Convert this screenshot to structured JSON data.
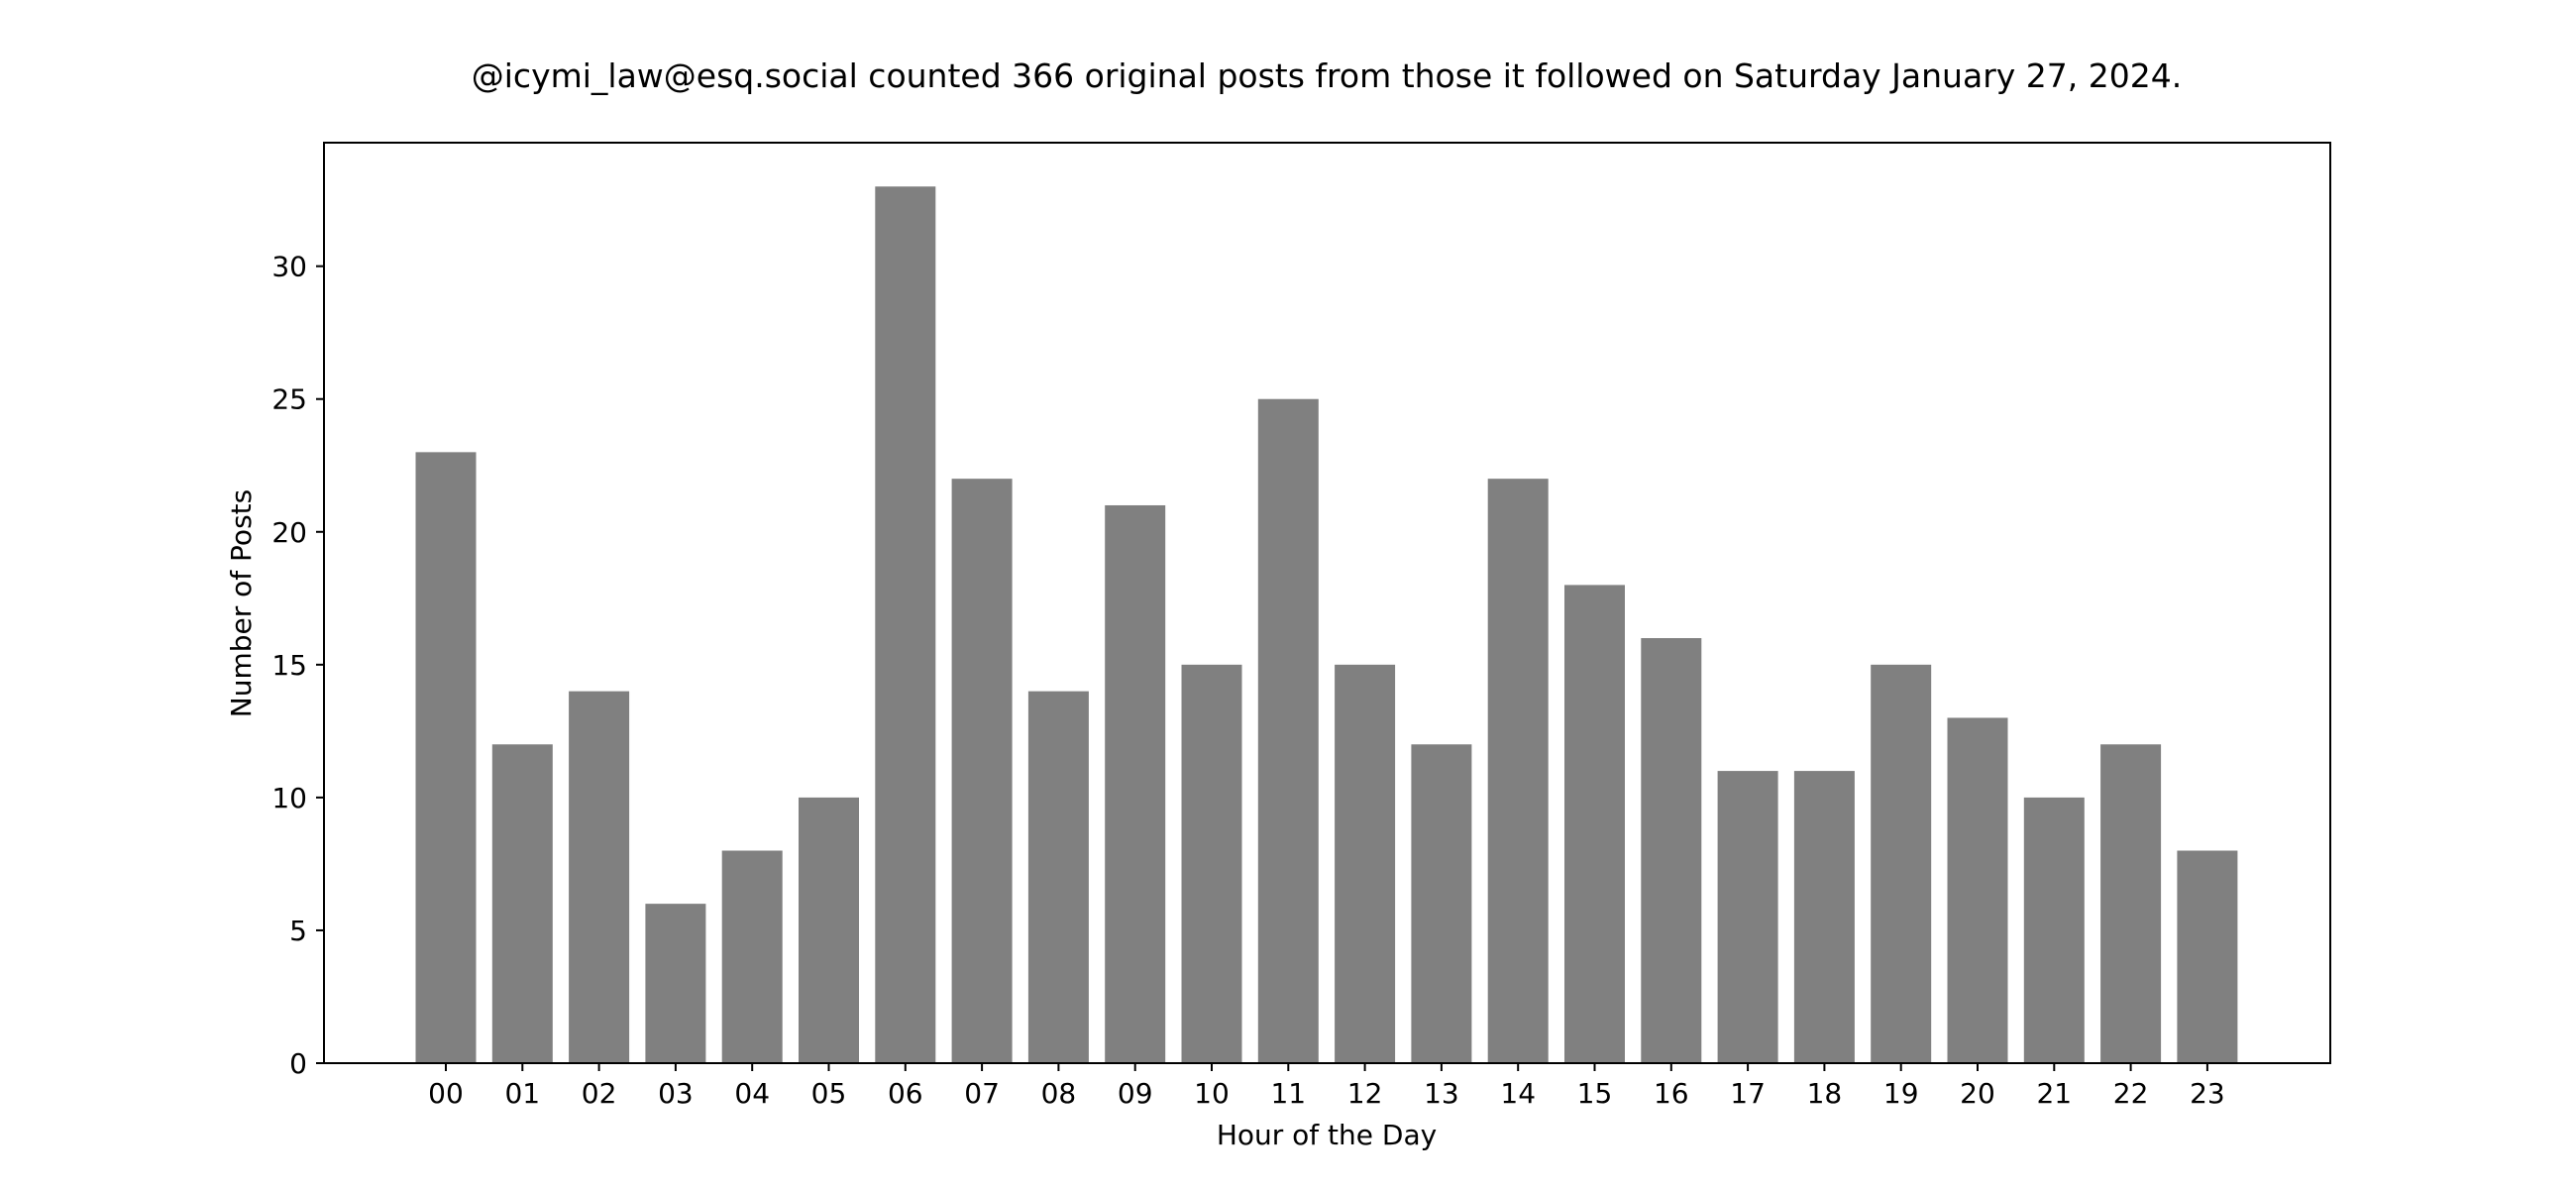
{
  "chart_data": {
    "type": "bar",
    "title": "@icymi_law@esq.social counted 366 original posts from those it followed on Saturday January 27, 2024.",
    "xlabel": "Hour of the Day",
    "ylabel": "Number of Posts",
    "categories": [
      "00",
      "01",
      "02",
      "03",
      "04",
      "05",
      "06",
      "07",
      "08",
      "09",
      "10",
      "11",
      "12",
      "13",
      "14",
      "15",
      "16",
      "17",
      "18",
      "19",
      "20",
      "21",
      "22",
      "23"
    ],
    "values": [
      23,
      12,
      14,
      6,
      8,
      10,
      33,
      22,
      14,
      21,
      15,
      25,
      15,
      12,
      22,
      18,
      16,
      11,
      11,
      15,
      13,
      10,
      12,
      8
    ],
    "ylim": [
      0,
      34.65
    ],
    "yticks": [
      0,
      5,
      10,
      15,
      20,
      25,
      30
    ],
    "bar_color": "#808080",
    "grid": false,
    "legend": "none"
  }
}
